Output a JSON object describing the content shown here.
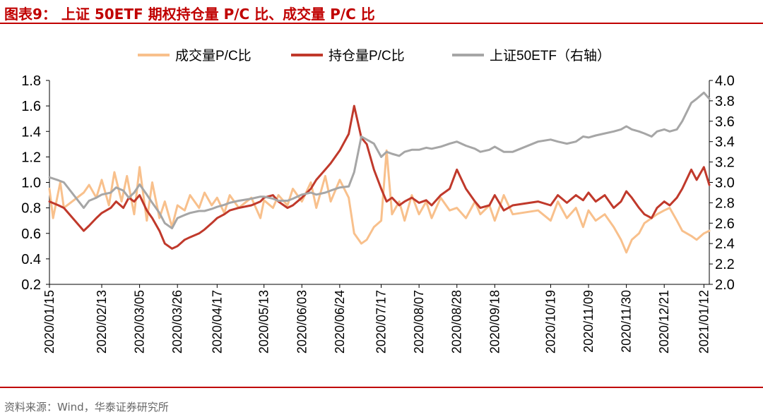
{
  "title": "图表9：  上证 50ETF 期权持仓量 P/C 比、成交量 P/C 比",
  "source": "资料来源：Wind，华泰证券研究所",
  "colors": {
    "accent": "#c00000",
    "volume": "#f8c08c",
    "oi": "#c0392b",
    "etf": "#a6a6a6"
  },
  "chart_data": {
    "type": "line",
    "title": "",
    "legend_position": "top",
    "grid": false,
    "x_ticks": [
      "2020/01/15",
      "2020/02/13",
      "2020/03/05",
      "2020/03/26",
      "2020/04/17",
      "2020/05/13",
      "2020/06/03",
      "2020/06/24",
      "2020/07/17",
      "2020/08/07",
      "2020/08/28",
      "2020/09/18",
      "2020/10/19",
      "2020/11/09",
      "2020/11/30",
      "2020/12/21",
      "2021/01/12"
    ],
    "x_range": [
      "2020/01/15",
      "2021/01/15"
    ],
    "y_left": {
      "min": 0.2,
      "max": 1.8,
      "ticks": [
        "0.2",
        "0.4",
        "0.6",
        "0.8",
        "1.0",
        "1.2",
        "1.4",
        "1.6",
        "1.8"
      ]
    },
    "y_right": {
      "min": 2.0,
      "max": 4.0,
      "ticks": [
        "2.0",
        "2.2",
        "2.4",
        "2.6",
        "2.8",
        "3.0",
        "3.2",
        "3.4",
        "3.6",
        "3.8",
        "4.0"
      ]
    },
    "series": [
      {
        "name": "成交量P/C比",
        "axis": "left",
        "color": "#f8c08c",
        "points": [
          [
            "2020/01/15",
            0.95
          ],
          [
            "2020/01/17",
            0.72
          ],
          [
            "2020/01/21",
            1.0
          ],
          [
            "2020/01/23",
            0.8
          ],
          [
            "2020/02/03",
            0.92
          ],
          [
            "2020/02/06",
            0.98
          ],
          [
            "2020/02/10",
            0.88
          ],
          [
            "2020/02/13",
            1.02
          ],
          [
            "2020/02/17",
            0.82
          ],
          [
            "2020/02/20",
            1.08
          ],
          [
            "2020/02/24",
            0.85
          ],
          [
            "2020/02/27",
            1.05
          ],
          [
            "2020/03/02",
            0.75
          ],
          [
            "2020/03/05",
            1.12
          ],
          [
            "2020/03/09",
            0.7
          ],
          [
            "2020/03/12",
            1.0
          ],
          [
            "2020/03/16",
            0.72
          ],
          [
            "2020/03/19",
            0.85
          ],
          [
            "2020/03/23",
            0.65
          ],
          [
            "2020/03/26",
            0.82
          ],
          [
            "2020/03/30",
            0.78
          ],
          [
            "2020/04/02",
            0.9
          ],
          [
            "2020/04/07",
            0.8
          ],
          [
            "2020/04/10",
            0.92
          ],
          [
            "2020/04/14",
            0.82
          ],
          [
            "2020/04/17",
            0.88
          ],
          [
            "2020/04/21",
            0.76
          ],
          [
            "2020/04/24",
            0.9
          ],
          [
            "2020/04/29",
            0.8
          ],
          [
            "2020/05/06",
            0.88
          ],
          [
            "2020/05/11",
            0.72
          ],
          [
            "2020/05/13",
            0.86
          ],
          [
            "2020/05/18",
            0.8
          ],
          [
            "2020/05/21",
            0.9
          ],
          [
            "2020/05/26",
            0.82
          ],
          [
            "2020/05/29",
            0.95
          ],
          [
            "2020/06/03",
            0.85
          ],
          [
            "2020/06/08",
            1.0
          ],
          [
            "2020/06/11",
            0.8
          ],
          [
            "2020/06/16",
            1.05
          ],
          [
            "2020/06/19",
            0.85
          ],
          [
            "2020/06/24",
            1.02
          ],
          [
            "2020/06/29",
            0.88
          ],
          [
            "2020/07/02",
            0.6
          ],
          [
            "2020/07/06",
            0.52
          ],
          [
            "2020/07/09",
            0.55
          ],
          [
            "2020/07/13",
            0.65
          ],
          [
            "2020/07/17",
            0.7
          ],
          [
            "2020/07/20",
            1.25
          ],
          [
            "2020/07/23",
            0.75
          ],
          [
            "2020/07/27",
            0.85
          ],
          [
            "2020/07/30",
            0.7
          ],
          [
            "2020/08/03",
            0.9
          ],
          [
            "2020/08/07",
            0.75
          ],
          [
            "2020/08/11",
            0.85
          ],
          [
            "2020/08/14",
            0.72
          ],
          [
            "2020/08/19",
            0.88
          ],
          [
            "2020/08/24",
            0.78
          ],
          [
            "2020/08/28",
            0.8
          ],
          [
            "2020/09/02",
            0.72
          ],
          [
            "2020/09/07",
            0.85
          ],
          [
            "2020/09/10",
            0.75
          ],
          [
            "2020/09/15",
            0.82
          ],
          [
            "2020/09/18",
            0.7
          ],
          [
            "2020/09/23",
            0.9
          ],
          [
            "2020/09/28",
            0.75
          ],
          [
            "2020/10/12",
            0.78
          ],
          [
            "2020/10/19",
            0.7
          ],
          [
            "2020/10/23",
            0.85
          ],
          [
            "2020/10/28",
            0.72
          ],
          [
            "2020/11/02",
            0.8
          ],
          [
            "2020/11/06",
            0.65
          ],
          [
            "2020/11/09",
            0.78
          ],
          [
            "2020/11/13",
            0.7
          ],
          [
            "2020/11/18",
            0.75
          ],
          [
            "2020/11/23",
            0.65
          ],
          [
            "2020/11/27",
            0.55
          ],
          [
            "2020/11/30",
            0.45
          ],
          [
            "2020/12/03",
            0.55
          ],
          [
            "2020/12/07",
            0.6
          ],
          [
            "2020/12/10",
            0.68
          ],
          [
            "2020/12/14",
            0.72
          ],
          [
            "2020/12/17",
            0.75
          ],
          [
            "2020/12/21",
            0.78
          ],
          [
            "2020/12/24",
            0.8
          ],
          [
            "2020/12/28",
            0.7
          ],
          [
            "2020/12/31",
            0.62
          ],
          [
            "2021/01/05",
            0.58
          ],
          [
            "2021/01/08",
            0.55
          ],
          [
            "2021/01/12",
            0.6
          ],
          [
            "2021/01/15",
            0.62
          ]
        ]
      },
      {
        "name": "持仓量P/C比",
        "axis": "left",
        "color": "#c0392b",
        "points": [
          [
            "2020/01/15",
            0.85
          ],
          [
            "2020/01/20",
            0.82
          ],
          [
            "2020/01/23",
            0.8
          ],
          [
            "2020/02/03",
            0.62
          ],
          [
            "2020/02/06",
            0.66
          ],
          [
            "2020/02/10",
            0.72
          ],
          [
            "2020/02/13",
            0.76
          ],
          [
            "2020/02/18",
            0.8
          ],
          [
            "2020/02/21",
            0.85
          ],
          [
            "2020/02/25",
            0.8
          ],
          [
            "2020/02/28",
            0.88
          ],
          [
            "2020/03/02",
            0.85
          ],
          [
            "2020/03/05",
            0.9
          ],
          [
            "2020/03/09",
            0.78
          ],
          [
            "2020/03/12",
            0.72
          ],
          [
            "2020/03/16",
            0.62
          ],
          [
            "2020/03/19",
            0.52
          ],
          [
            "2020/03/23",
            0.48
          ],
          [
            "2020/03/26",
            0.5
          ],
          [
            "2020/03/30",
            0.55
          ],
          [
            "2020/04/02",
            0.57
          ],
          [
            "2020/04/07",
            0.6
          ],
          [
            "2020/04/10",
            0.63
          ],
          [
            "2020/04/14",
            0.68
          ],
          [
            "2020/04/17",
            0.72
          ],
          [
            "2020/04/21",
            0.75
          ],
          [
            "2020/04/24",
            0.78
          ],
          [
            "2020/04/29",
            0.8
          ],
          [
            "2020/05/06",
            0.82
          ],
          [
            "2020/05/11",
            0.85
          ],
          [
            "2020/05/13",
            0.88
          ],
          [
            "2020/05/18",
            0.9
          ],
          [
            "2020/05/21",
            0.85
          ],
          [
            "2020/05/26",
            0.8
          ],
          [
            "2020/05/29",
            0.82
          ],
          [
            "2020/06/03",
            0.88
          ],
          [
            "2020/06/08",
            0.95
          ],
          [
            "2020/06/11",
            1.02
          ],
          [
            "2020/06/16",
            1.1
          ],
          [
            "2020/06/19",
            1.15
          ],
          [
            "2020/06/24",
            1.25
          ],
          [
            "2020/06/29",
            1.38
          ],
          [
            "2020/07/02",
            1.6
          ],
          [
            "2020/07/06",
            1.35
          ],
          [
            "2020/07/09",
            1.3
          ],
          [
            "2020/07/13",
            1.1
          ],
          [
            "2020/07/17",
            0.95
          ],
          [
            "2020/07/20",
            0.85
          ],
          [
            "2020/07/23",
            0.88
          ],
          [
            "2020/07/27",
            0.82
          ],
          [
            "2020/07/30",
            0.85
          ],
          [
            "2020/08/03",
            0.88
          ],
          [
            "2020/08/07",
            0.84
          ],
          [
            "2020/08/11",
            0.86
          ],
          [
            "2020/08/14",
            0.82
          ],
          [
            "2020/08/19",
            0.9
          ],
          [
            "2020/08/24",
            0.95
          ],
          [
            "2020/08/28",
            1.1
          ],
          [
            "2020/09/02",
            0.95
          ],
          [
            "2020/09/07",
            0.85
          ],
          [
            "2020/09/10",
            0.8
          ],
          [
            "2020/09/15",
            0.82
          ],
          [
            "2020/09/18",
            0.9
          ],
          [
            "2020/09/23",
            0.78
          ],
          [
            "2020/09/28",
            0.82
          ],
          [
            "2020/10/12",
            0.85
          ],
          [
            "2020/10/19",
            0.82
          ],
          [
            "2020/10/23",
            0.9
          ],
          [
            "2020/10/28",
            0.84
          ],
          [
            "2020/11/02",
            0.9
          ],
          [
            "2020/11/06",
            0.86
          ],
          [
            "2020/11/09",
            0.92
          ],
          [
            "2020/11/13",
            0.85
          ],
          [
            "2020/11/18",
            0.9
          ],
          [
            "2020/11/23",
            0.8
          ],
          [
            "2020/11/27",
            0.85
          ],
          [
            "2020/11/30",
            0.93
          ],
          [
            "2020/12/03",
            0.88
          ],
          [
            "2020/12/07",
            0.8
          ],
          [
            "2020/12/10",
            0.75
          ],
          [
            "2020/12/14",
            0.72
          ],
          [
            "2020/12/17",
            0.8
          ],
          [
            "2020/12/21",
            0.85
          ],
          [
            "2020/12/24",
            0.82
          ],
          [
            "2020/12/28",
            0.88
          ],
          [
            "2020/12/31",
            0.95
          ],
          [
            "2021/01/05",
            1.1
          ],
          [
            "2021/01/08",
            1.02
          ],
          [
            "2021/01/12",
            1.12
          ],
          [
            "2021/01/15",
            0.98
          ]
        ]
      },
      {
        "name": "上证50ETF（右轴）",
        "axis": "right",
        "color": "#a6a6a6",
        "points": [
          [
            "2020/01/15",
            3.05
          ],
          [
            "2020/01/20",
            3.02
          ],
          [
            "2020/01/23",
            3.0
          ],
          [
            "2020/02/03",
            2.75
          ],
          [
            "2020/02/06",
            2.82
          ],
          [
            "2020/02/10",
            2.85
          ],
          [
            "2020/02/13",
            2.88
          ],
          [
            "2020/02/18",
            2.9
          ],
          [
            "2020/02/21",
            2.95
          ],
          [
            "2020/02/25",
            2.92
          ],
          [
            "2020/02/28",
            2.85
          ],
          [
            "2020/03/02",
            2.9
          ],
          [
            "2020/03/05",
            2.98
          ],
          [
            "2020/03/09",
            2.88
          ],
          [
            "2020/03/12",
            2.8
          ],
          [
            "2020/03/16",
            2.7
          ],
          [
            "2020/03/19",
            2.6
          ],
          [
            "2020/03/23",
            2.55
          ],
          [
            "2020/03/26",
            2.65
          ],
          [
            "2020/03/30",
            2.68
          ],
          [
            "2020/04/02",
            2.7
          ],
          [
            "2020/04/07",
            2.72
          ],
          [
            "2020/04/10",
            2.72
          ],
          [
            "2020/04/14",
            2.74
          ],
          [
            "2020/04/17",
            2.76
          ],
          [
            "2020/04/21",
            2.78
          ],
          [
            "2020/04/24",
            2.8
          ],
          [
            "2020/04/29",
            2.82
          ],
          [
            "2020/05/06",
            2.84
          ],
          [
            "2020/05/11",
            2.86
          ],
          [
            "2020/05/13",
            2.86
          ],
          [
            "2020/05/18",
            2.84
          ],
          [
            "2020/05/21",
            2.82
          ],
          [
            "2020/05/26",
            2.82
          ],
          [
            "2020/05/29",
            2.84
          ],
          [
            "2020/06/03",
            2.88
          ],
          [
            "2020/06/08",
            2.9
          ],
          [
            "2020/06/11",
            2.88
          ],
          [
            "2020/06/16",
            2.9
          ],
          [
            "2020/06/19",
            2.92
          ],
          [
            "2020/06/24",
            2.95
          ],
          [
            "2020/06/29",
            2.96
          ],
          [
            "2020/07/02",
            3.1
          ],
          [
            "2020/07/06",
            3.45
          ],
          [
            "2020/07/09",
            3.42
          ],
          [
            "2020/07/13",
            3.38
          ],
          [
            "2020/07/17",
            3.25
          ],
          [
            "2020/07/20",
            3.3
          ],
          [
            "2020/07/23",
            3.28
          ],
          [
            "2020/07/27",
            3.26
          ],
          [
            "2020/07/30",
            3.3
          ],
          [
            "2020/08/03",
            3.32
          ],
          [
            "2020/08/07",
            3.32
          ],
          [
            "2020/08/11",
            3.34
          ],
          [
            "2020/08/14",
            3.33
          ],
          [
            "2020/08/19",
            3.35
          ],
          [
            "2020/08/24",
            3.38
          ],
          [
            "2020/08/28",
            3.4
          ],
          [
            "2020/09/02",
            3.36
          ],
          [
            "2020/09/07",
            3.33
          ],
          [
            "2020/09/10",
            3.3
          ],
          [
            "2020/09/15",
            3.32
          ],
          [
            "2020/09/18",
            3.35
          ],
          [
            "2020/09/23",
            3.3
          ],
          [
            "2020/09/28",
            3.3
          ],
          [
            "2020/10/12",
            3.4
          ],
          [
            "2020/10/19",
            3.42
          ],
          [
            "2020/10/23",
            3.4
          ],
          [
            "2020/10/28",
            3.38
          ],
          [
            "2020/11/02",
            3.4
          ],
          [
            "2020/11/06",
            3.45
          ],
          [
            "2020/11/09",
            3.44
          ],
          [
            "2020/11/13",
            3.46
          ],
          [
            "2020/11/18",
            3.48
          ],
          [
            "2020/11/23",
            3.5
          ],
          [
            "2020/11/27",
            3.52
          ],
          [
            "2020/11/30",
            3.55
          ],
          [
            "2020/12/03",
            3.52
          ],
          [
            "2020/12/07",
            3.5
          ],
          [
            "2020/12/10",
            3.48
          ],
          [
            "2020/12/14",
            3.45
          ],
          [
            "2020/12/17",
            3.5
          ],
          [
            "2020/12/21",
            3.52
          ],
          [
            "2020/12/24",
            3.5
          ],
          [
            "2020/12/28",
            3.52
          ],
          [
            "2020/12/31",
            3.6
          ],
          [
            "2021/01/05",
            3.78
          ],
          [
            "2021/01/08",
            3.82
          ],
          [
            "2021/01/12",
            3.88
          ],
          [
            "2021/01/15",
            3.82
          ]
        ]
      }
    ]
  }
}
